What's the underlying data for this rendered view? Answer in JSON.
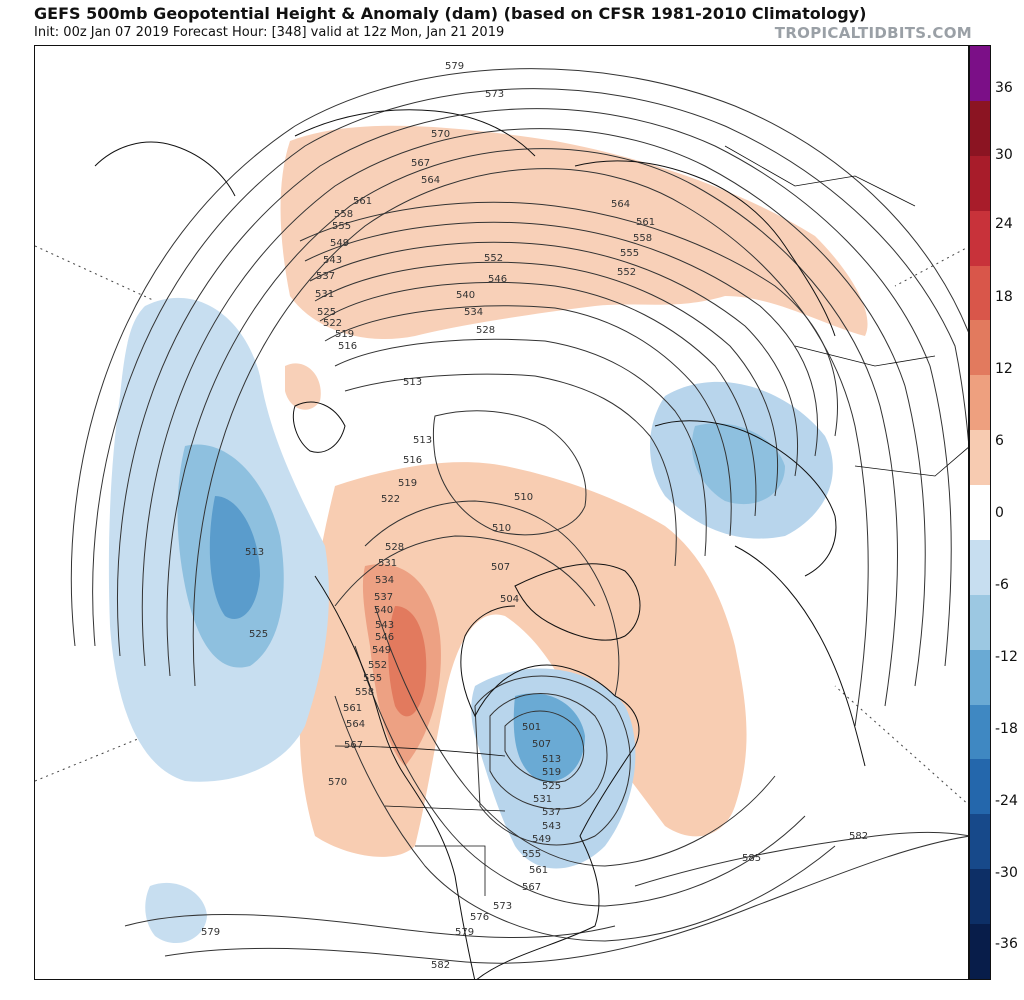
{
  "header": {
    "title": "GEFS 500mb Geopotential Height & Anomaly (dam) (based on CFSR 1981-2010 Climatology)",
    "subtitle": "Init: 00z Jan 07 2019   Forecast Hour: [348]   valid at 12z Mon, Jan 21 2019",
    "brand": "TROPICALTIDBITS.COM"
  },
  "colorbar": {
    "labels": [
      "36",
      "30",
      "24",
      "18",
      "12",
      "6",
      "0",
      "-6",
      "-12",
      "-18",
      "-24",
      "-30",
      "-36"
    ],
    "colors": [
      "#7b0f87",
      "#8b1422",
      "#a81c2a",
      "#c8323a",
      "#d9564a",
      "#e27a5e",
      "#eea07f",
      "#f7cbb1",
      "#ffffff",
      "#c7def0",
      "#9cc8e2",
      "#6aaad4",
      "#3f88c2",
      "#2467ac",
      "#17498a",
      "#0d2f66",
      "#081d4a"
    ]
  },
  "map": {
    "contour_labels": {
      "c579_top": "579",
      "c573": "573",
      "c570": "570",
      "c567": "567",
      "c564": "564",
      "c561": "561",
      "c558": "558",
      "c555": "555",
      "c549": "549",
      "c543": "543",
      "c537": "537",
      "c531": "531",
      "c525": "525",
      "c522": "522",
      "c519": "519",
      "c516": "516",
      "c513_a": "513",
      "c513_b": "513",
      "c516_b": "516",
      "c519_b": "519",
      "c522_b": "522",
      "c510_a": "510",
      "c510_b": "510",
      "c552_r": "552",
      "c546_r": "546",
      "c540_r": "540",
      "c534_r": "534",
      "c528_r": "528",
      "c564_e": "564",
      "c561_e": "561",
      "c558_e": "558",
      "c555_e": "555",
      "c552_e": "552",
      "c513_pac": "513",
      "c525_pac": "525",
      "c528_w": "528",
      "c531_w": "531",
      "c534_w": "534",
      "c537_w": "537",
      "c540_w": "540",
      "c543_w": "543",
      "c546_w": "546",
      "c549_w": "549",
      "c552_w": "552",
      "c555_w": "555",
      "c558_w": "558",
      "c561_w": "561",
      "c564_w": "564",
      "c567_w": "567",
      "c570_w": "570",
      "c507_n": "507",
      "c504_n": "504",
      "c501": "501",
      "c507_c": "507",
      "c513_c": "513",
      "c519_c": "519",
      "c525_c": "525",
      "c531_c": "531",
      "c537_c": "537",
      "c543_c": "543",
      "c549_c": "549",
      "c555_c": "555",
      "c561_c": "561",
      "c567_c": "567",
      "c573_s": "573",
      "c576_s": "576",
      "c579_s": "579",
      "c582_s": "582",
      "c579_sw": "579",
      "c585": "585",
      "c582_e": "582"
    }
  }
}
